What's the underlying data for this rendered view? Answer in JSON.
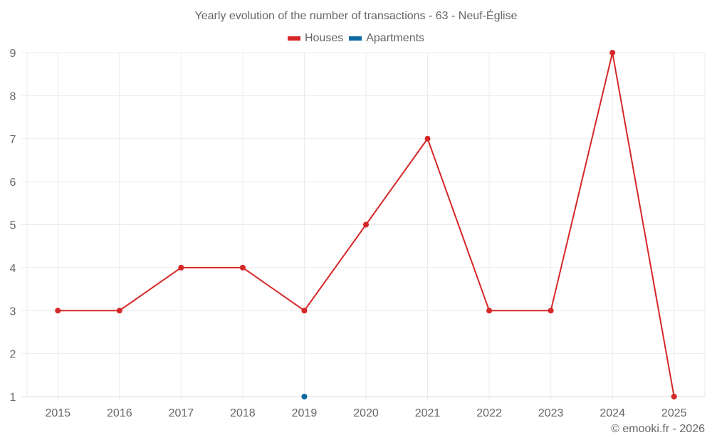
{
  "chart_data": {
    "type": "line",
    "title": "Yearly evolution of the number of transactions - 63 - Neuf-Église",
    "xlabel": "",
    "ylabel": "",
    "categories": [
      "2015",
      "2016",
      "2017",
      "2018",
      "2019",
      "2020",
      "2021",
      "2022",
      "2023",
      "2024",
      "2025"
    ],
    "series": [
      {
        "name": "Houses",
        "color": "#d62728",
        "values": [
          3,
          3,
          4,
          4,
          3,
          5,
          7,
          3,
          3,
          9,
          1
        ]
      },
      {
        "name": "Apartments",
        "color": "#0b6aa2",
        "values": [
          null,
          null,
          null,
          null,
          1,
          null,
          null,
          null,
          null,
          null,
          null
        ]
      }
    ],
    "ylim": [
      1,
      9
    ],
    "yticks": [
      "1",
      "2",
      "3",
      "4",
      "5",
      "6",
      "7",
      "8",
      "9"
    ],
    "grid": true,
    "legend_position": "top"
  },
  "legend": {
    "houses": "Houses",
    "apartments": "Apartments"
  },
  "colors": {
    "houses": "#d62728",
    "apartments": "#0b6aa2",
    "grid": "#ebebeb",
    "text": "#666666"
  },
  "credit": "© emooki.fr - 2026"
}
